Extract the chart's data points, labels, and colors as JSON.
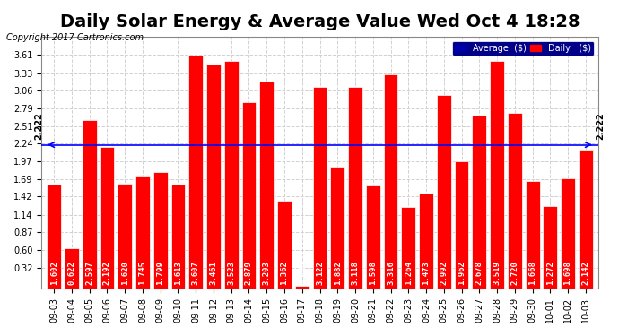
{
  "title": "Daily Solar Energy & Average Value Wed Oct 4 18:28",
  "copyright": "Copyright 2017 Cartronics.com",
  "average_label": "2.222",
  "average_value": 2.222,
  "bar_color": "#FF0000",
  "bar_edge_color": "#FFFFFF",
  "background_color": "#FFFFFF",
  "plot_bg_color": "#FFFFFF",
  "grid_color": "#CCCCCC",
  "avg_line_color": "#0000FF",
  "categories": [
    "09-03",
    "09-04",
    "09-05",
    "09-06",
    "09-07",
    "09-08",
    "09-09",
    "09-10",
    "09-11",
    "09-12",
    "09-13",
    "09-14",
    "09-15",
    "09-16",
    "09-17",
    "09-18",
    "09-19",
    "09-20",
    "09-21",
    "09-22",
    "09-23",
    "09-24",
    "09-25",
    "09-26",
    "09-27",
    "09-28",
    "09-29",
    "09-30",
    "10-01",
    "10-02",
    "10-03"
  ],
  "values": [
    1.602,
    0.622,
    2.597,
    2.192,
    1.62,
    1.745,
    1.799,
    1.613,
    3.607,
    3.461,
    3.523,
    2.879,
    3.203,
    1.362,
    0.043,
    3.122,
    1.882,
    3.118,
    1.598,
    3.316,
    1.264,
    1.473,
    2.992,
    1.962,
    2.678,
    3.519,
    2.72,
    1.668,
    1.272,
    1.698,
    2.142
  ],
  "ylim": [
    0.0,
    3.89
  ],
  "yticks": [
    0.32,
    0.6,
    0.87,
    1.14,
    1.42,
    1.69,
    1.97,
    2.24,
    2.51,
    2.79,
    3.06,
    3.33,
    3.61
  ],
  "title_fontsize": 14,
  "label_fontsize": 6.5,
  "tick_fontsize": 7,
  "legend_avg_color": "#0000AA",
  "legend_daily_color": "#FF0000"
}
